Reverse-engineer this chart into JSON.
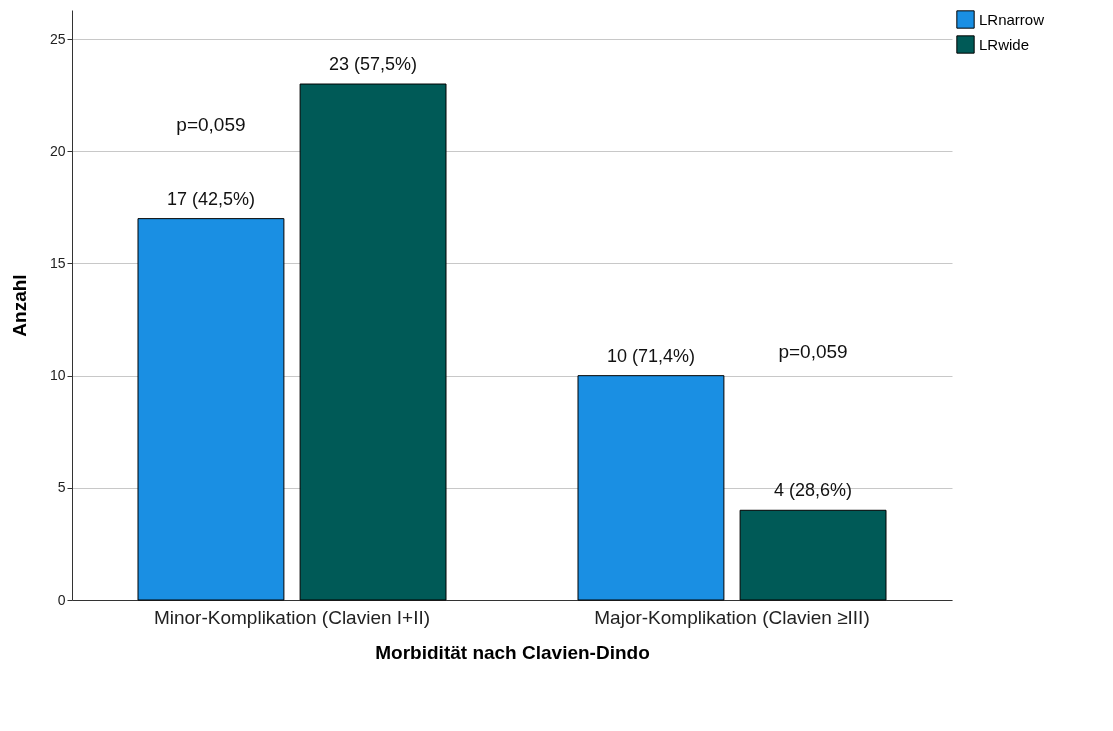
{
  "chart_data": {
    "type": "bar",
    "xlabel": "Morbidität nach Clavien-Dindo",
    "ylabel": "Anzahl",
    "categories": [
      "Minor-Komplikation (Clavien I+II)",
      "Major-Komplikation (Clavien ≥III)"
    ],
    "series": [
      {
        "name": "LRnarrow",
        "color": "#1a8fe3",
        "values": [
          17,
          10
        ],
        "value_labels": [
          "17 (42,5%)",
          "10 (71,4%)"
        ]
      },
      {
        "name": "LRwide",
        "color": "#005a57",
        "values": [
          23,
          4
        ],
        "value_labels": [
          "23 (57,5%)",
          "4 (28,6%)"
        ]
      }
    ],
    "ylim": [
      0,
      26.3
    ],
    "yticks": [
      0,
      5,
      10,
      15,
      20,
      25
    ],
    "grid": "y",
    "legend": "top right",
    "annotations": [
      "p=0,059",
      "p=0,059"
    ]
  }
}
